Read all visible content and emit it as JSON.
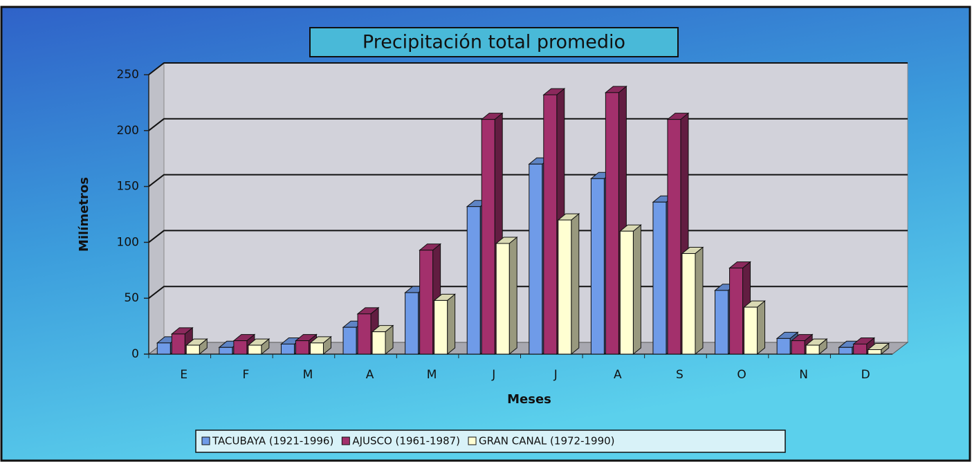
{
  "chart_data": {
    "type": "bar3d",
    "title": "Precipitación total promedio",
    "x_label": "Meses",
    "y_label": "Milímetros",
    "categories": [
      "E",
      "F",
      "M",
      "A",
      "M",
      "J",
      "J",
      "A",
      "S",
      "O",
      "N",
      "D"
    ],
    "series": [
      {
        "name": "TACUBAYA (1921-1996)",
        "color": "#6f9be8",
        "values": [
          10,
          6,
          9,
          24,
          55,
          132,
          170,
          157,
          136,
          57,
          14,
          6
        ]
      },
      {
        "name": "AJUSCO (1961-1987)",
        "color": "#a3306c",
        "values": [
          18,
          12,
          12,
          36,
          93,
          210,
          232,
          234,
          210,
          77,
          12,
          9
        ]
      },
      {
        "name": "GRAN CANAL (1972-1990)",
        "color": "#ffffd2",
        "values": [
          8,
          8,
          10,
          20,
          48,
          99,
          120,
          110,
          90,
          42,
          8,
          4
        ]
      }
    ],
    "ylim": [
      0,
      250
    ],
    "yticks": [
      0,
      50,
      100,
      150,
      200,
      250
    ],
    "grid": true
  }
}
